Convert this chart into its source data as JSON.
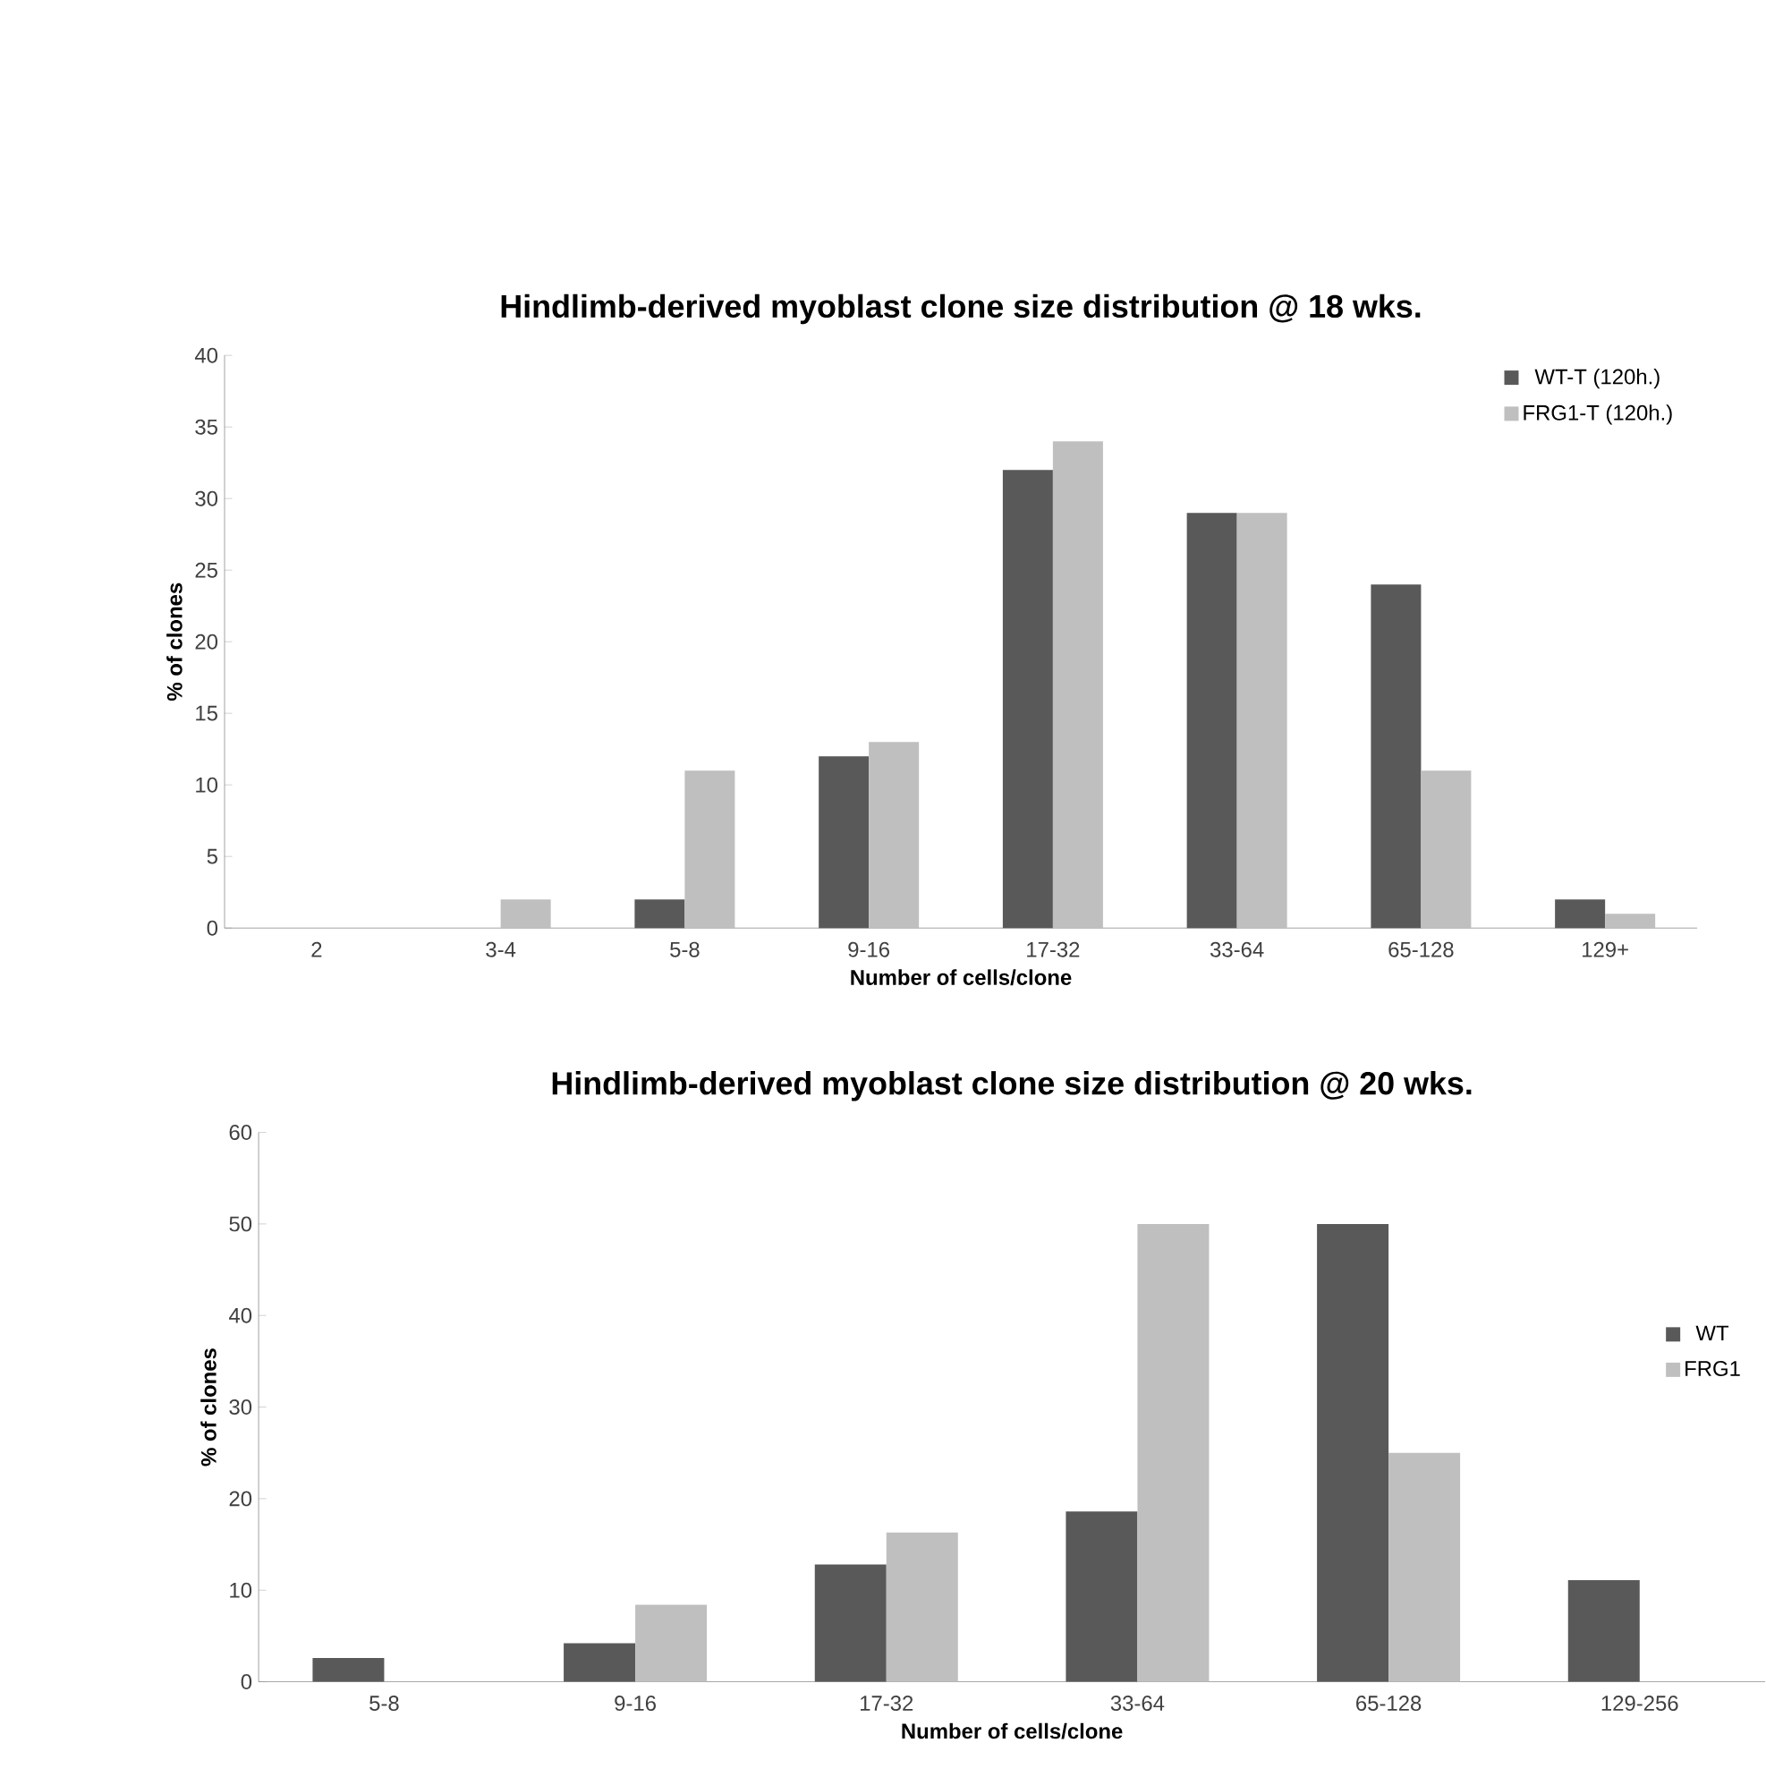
{
  "chart_data": [
    {
      "type": "bar",
      "title": "Hindlimb-derived myoblast clone size distribution @ 18 wks.",
      "xlabel": "Number of cells/clone",
      "ylabel": "% of clones",
      "categories": [
        "2",
        "3-4",
        "5-8",
        "9-16",
        "17-32",
        "33-64",
        "65-128",
        "129+"
      ],
      "series": [
        {
          "name": "WT-T (120h.)",
          "color": "#595959",
          "values": [
            0,
            0,
            2,
            12,
            32,
            29,
            24,
            2
          ]
        },
        {
          "name": "FRG1-T (120h.)",
          "color": "#bfbfbf",
          "values": [
            0,
            2,
            11,
            13,
            34,
            29,
            11,
            1
          ]
        }
      ],
      "ylim": [
        0,
        40
      ],
      "yticks": [
        0,
        5,
        10,
        15,
        20,
        25,
        30,
        35,
        40
      ],
      "legend": "top right"
    },
    {
      "type": "bar",
      "title": "Hindlimb-derived myoblast clone size distribution @ 20 wks.",
      "xlabel": "Number of cells/clone",
      "ylabel": "% of clones",
      "categories": [
        "5-8",
        "9-16",
        "17-32",
        "33-64",
        "65-128",
        "129-256"
      ],
      "series": [
        {
          "name": "WT",
          "color": "#595959",
          "values": [
            2.6,
            4.2,
            12.8,
            18.6,
            50,
            11.1
          ]
        },
        {
          "name": "FRG1",
          "color": "#bfbfbf",
          "values": [
            0,
            8.4,
            16.3,
            50,
            25,
            0
          ]
        }
      ],
      "ylim": [
        0,
        60
      ],
      "yticks": [
        0,
        10,
        20,
        30,
        40,
        50,
        60
      ],
      "legend": "right"
    }
  ]
}
